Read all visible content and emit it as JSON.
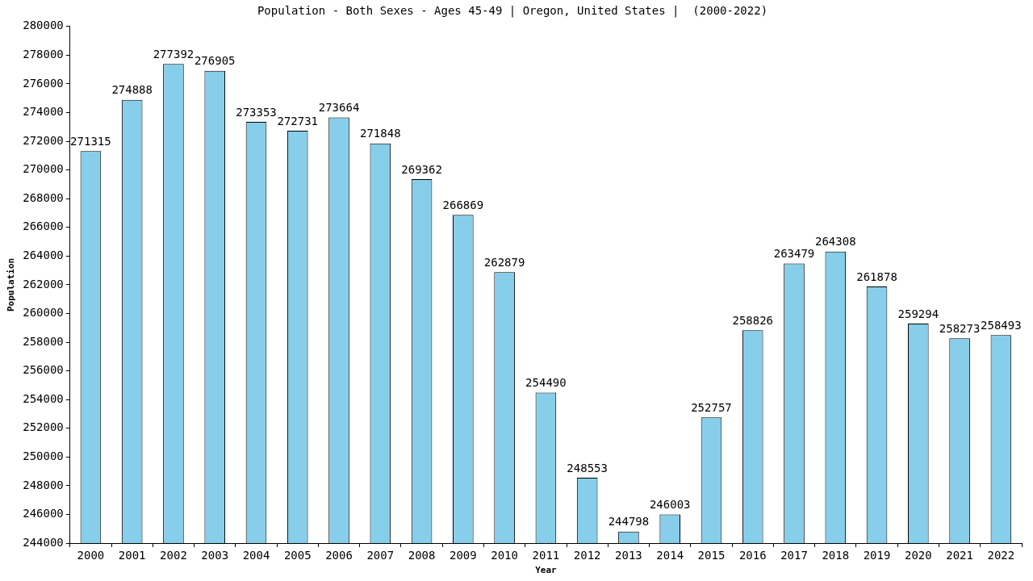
{
  "chart_data": {
    "type": "bar",
    "title": "Population - Both Sexes - Ages 45-49 | Oregon, United States |  (2000-2022)",
    "x_label": "Year",
    "y_label": "Population",
    "categories": [
      "2000",
      "2001",
      "2002",
      "2003",
      "2004",
      "2005",
      "2006",
      "2007",
      "2008",
      "2009",
      "2010",
      "2011",
      "2012",
      "2013",
      "2014",
      "2015",
      "2016",
      "2017",
      "2018",
      "2019",
      "2020",
      "2021",
      "2022"
    ],
    "values": [
      271315,
      274888,
      277392,
      276905,
      273353,
      272731,
      273664,
      271848,
      269362,
      266869,
      262879,
      254490,
      248553,
      244798,
      246003,
      252757,
      258826,
      263479,
      264308,
      261878,
      259294,
      258273,
      258493
    ],
    "color": "#87ceeb",
    "ylim": [
      244000,
      280000
    ],
    "yticks": [
      244000,
      246000,
      248000,
      250000,
      252000,
      254000,
      256000,
      258000,
      260000,
      262000,
      264000,
      266000,
      268000,
      270000,
      272000,
      274000,
      276000,
      278000,
      280000
    ],
    "grid": false,
    "data_labels": true
  }
}
